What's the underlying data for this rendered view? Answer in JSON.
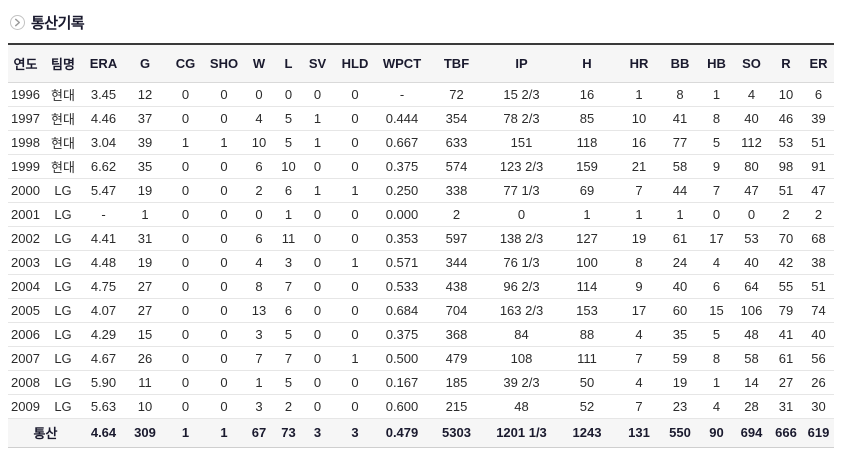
{
  "page": {
    "title": "통산기록"
  },
  "icons": {
    "section_arrow": "chevron-right-circle"
  },
  "colors": {
    "title_text": "#1a1a2e",
    "table_top_border": "#3a3a3a",
    "header_bg": "#f6f6f6",
    "row_divider": "#e6e6e6",
    "total_bg": "#f6f6f6"
  },
  "table": {
    "columns": [
      "연도",
      "팀명",
      "ERA",
      "G",
      "CG",
      "SHO",
      "W",
      "L",
      "SV",
      "HLD",
      "WPCT",
      "TBF",
      "IP",
      "H",
      "HR",
      "BB",
      "HB",
      "SO",
      "R",
      "ER"
    ],
    "rows": [
      [
        "1996",
        "현대",
        "3.45",
        "12",
        "0",
        "0",
        "0",
        "0",
        "0",
        "0",
        "-",
        "72",
        "15 2/3",
        "16",
        "1",
        "8",
        "1",
        "4",
        "10",
        "6"
      ],
      [
        "1997",
        "현대",
        "4.46",
        "37",
        "0",
        "0",
        "4",
        "5",
        "1",
        "0",
        "0.444",
        "354",
        "78 2/3",
        "85",
        "10",
        "41",
        "8",
        "40",
        "46",
        "39"
      ],
      [
        "1998",
        "현대",
        "3.04",
        "39",
        "1",
        "1",
        "10",
        "5",
        "1",
        "0",
        "0.667",
        "633",
        "151",
        "118",
        "16",
        "77",
        "5",
        "112",
        "53",
        "51"
      ],
      [
        "1999",
        "현대",
        "6.62",
        "35",
        "0",
        "0",
        "6",
        "10",
        "0",
        "0",
        "0.375",
        "574",
        "123 2/3",
        "159",
        "21",
        "58",
        "9",
        "80",
        "98",
        "91"
      ],
      [
        "2000",
        "LG",
        "5.47",
        "19",
        "0",
        "0",
        "2",
        "6",
        "1",
        "1",
        "0.250",
        "338",
        "77 1/3",
        "69",
        "7",
        "44",
        "7",
        "47",
        "51",
        "47"
      ],
      [
        "2001",
        "LG",
        "-",
        "1",
        "0",
        "0",
        "0",
        "1",
        "0",
        "0",
        "0.000",
        "2",
        "0",
        "1",
        "1",
        "1",
        "0",
        "0",
        "2",
        "2"
      ],
      [
        "2002",
        "LG",
        "4.41",
        "31",
        "0",
        "0",
        "6",
        "11",
        "0",
        "0",
        "0.353",
        "597",
        "138 2/3",
        "127",
        "19",
        "61",
        "17",
        "53",
        "70",
        "68"
      ],
      [
        "2003",
        "LG",
        "4.48",
        "19",
        "0",
        "0",
        "4",
        "3",
        "0",
        "1",
        "0.571",
        "344",
        "76 1/3",
        "100",
        "8",
        "24",
        "4",
        "40",
        "42",
        "38"
      ],
      [
        "2004",
        "LG",
        "4.75",
        "27",
        "0",
        "0",
        "8",
        "7",
        "0",
        "0",
        "0.533",
        "438",
        "96 2/3",
        "114",
        "9",
        "40",
        "6",
        "64",
        "55",
        "51"
      ],
      [
        "2005",
        "LG",
        "4.07",
        "27",
        "0",
        "0",
        "13",
        "6",
        "0",
        "0",
        "0.684",
        "704",
        "163 2/3",
        "153",
        "17",
        "60",
        "15",
        "106",
        "79",
        "74"
      ],
      [
        "2006",
        "LG",
        "4.29",
        "15",
        "0",
        "0",
        "3",
        "5",
        "0",
        "0",
        "0.375",
        "368",
        "84",
        "88",
        "4",
        "35",
        "5",
        "48",
        "41",
        "40"
      ],
      [
        "2007",
        "LG",
        "4.67",
        "26",
        "0",
        "0",
        "7",
        "7",
        "0",
        "1",
        "0.500",
        "479",
        "108",
        "111",
        "7",
        "59",
        "8",
        "58",
        "61",
        "56"
      ],
      [
        "2008",
        "LG",
        "5.90",
        "11",
        "0",
        "0",
        "1",
        "5",
        "0",
        "0",
        "0.167",
        "185",
        "39 2/3",
        "50",
        "4",
        "19",
        "1",
        "14",
        "27",
        "26"
      ],
      [
        "2009",
        "LG",
        "5.63",
        "10",
        "0",
        "0",
        "3",
        "2",
        "0",
        "0",
        "0.600",
        "215",
        "48",
        "52",
        "7",
        "23",
        "4",
        "28",
        "31",
        "30"
      ]
    ],
    "total": {
      "label": "통산",
      "values": [
        "4.64",
        "309",
        "1",
        "1",
        "67",
        "73",
        "3",
        "3",
        "0.479",
        "5303",
        "1201 1/3",
        "1243",
        "131",
        "550",
        "90",
        "694",
        "666",
        "619"
      ]
    }
  }
}
